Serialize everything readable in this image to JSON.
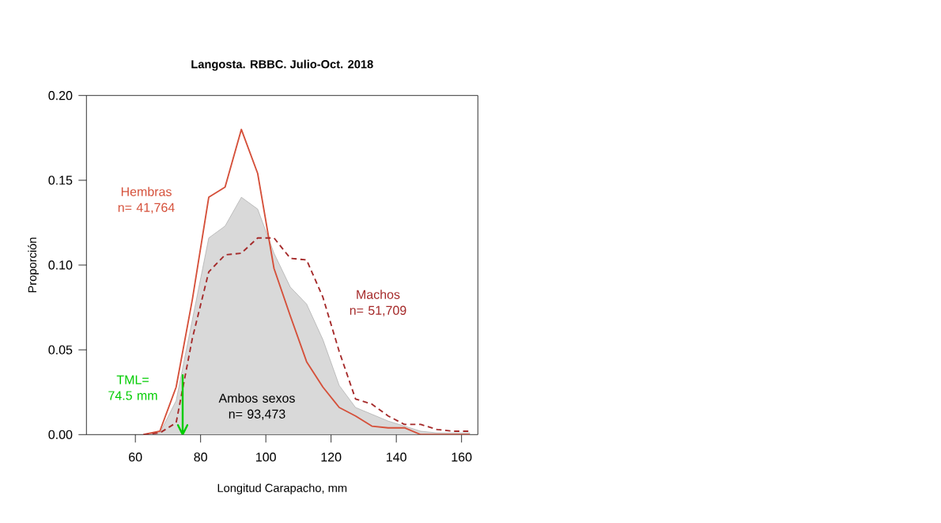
{
  "chart_data": {
    "type": "line",
    "title": "Langosta. RBBC. Julio-Oct. 2018",
    "xlabel": "Longitud Carapacho, mm",
    "ylabel": "Proporción",
    "x": [
      62.5,
      67.5,
      72.5,
      77.5,
      82.5,
      87.5,
      92.5,
      97.5,
      102.5,
      107.5,
      112.5,
      117.5,
      122.5,
      127.5,
      132.5,
      137.5,
      142.5,
      147.5,
      152.5,
      157.5,
      162.5
    ],
    "series": [
      {
        "name": "Ambos sexos n= 93,473",
        "type": "area",
        "color": "#d9d9d9",
        "values": [
          0,
          0.001,
          0.02,
          0.068,
          0.116,
          0.123,
          0.14,
          0.133,
          0.107,
          0.087,
          0.077,
          0.056,
          0.029,
          0.016,
          0.012,
          0.008,
          0.005,
          0.002,
          0.001,
          0.001,
          0.001
        ]
      },
      {
        "name": "Hembras n= 41,764",
        "type": "line",
        "color": "#d5503a",
        "values": [
          0,
          0.002,
          0.028,
          0.08,
          0.14,
          0.146,
          0.18,
          0.154,
          0.098,
          0.07,
          0.043,
          0.028,
          0.016,
          0.011,
          0.005,
          0.004,
          0.004,
          0,
          0,
          0,
          0
        ]
      },
      {
        "name": "Machos n= 51,709",
        "type": "line",
        "line_style": "dashed",
        "color": "#a52a2a",
        "values": [
          0,
          0.001,
          0.007,
          0.057,
          0.096,
          0.106,
          0.107,
          0.116,
          0.116,
          0.104,
          0.103,
          0.081,
          0.049,
          0.021,
          0.018,
          0.011,
          0.006,
          0.006,
          0.003,
          0.002,
          0.002
        ]
      }
    ],
    "ref_lines": [
      {
        "axis": "x",
        "value": 74.5,
        "label": "TML= 74.5 mm",
        "color": "#00cc00"
      }
    ],
    "xlim": [
      45,
      165
    ],
    "ylim": [
      0,
      0.2
    ],
    "xticks": [
      60,
      80,
      100,
      120,
      140,
      160
    ],
    "yticks": [
      {
        "value": 0,
        "label": "0.00"
      },
      {
        "value": 0.05,
        "label": "0.05"
      },
      {
        "value": 0.1,
        "label": "0.10"
      },
      {
        "value": 0.15,
        "label": "0.15"
      },
      {
        "value": 0.2,
        "label": "0.20"
      }
    ]
  }
}
